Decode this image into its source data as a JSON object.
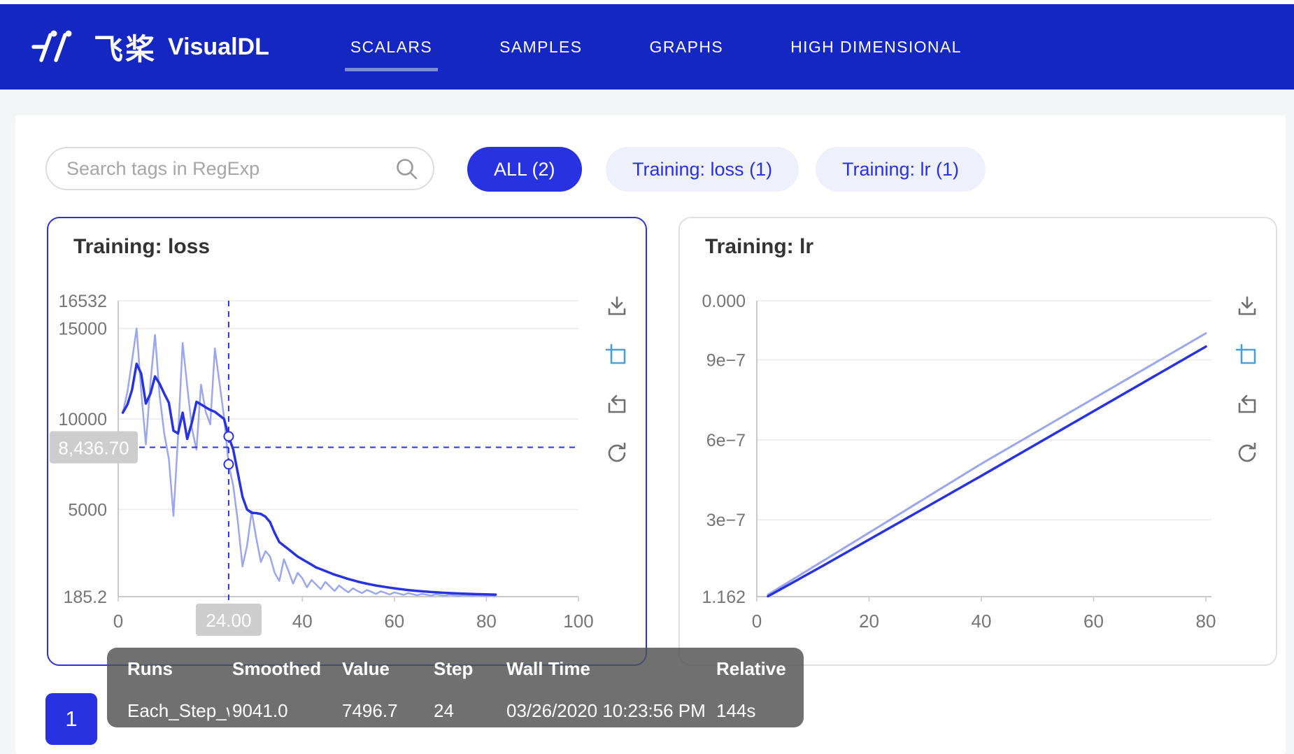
{
  "navbar": {
    "brand_cn": "飞桨",
    "brand_name": "VisualDL",
    "tabs": [
      {
        "label": "SCALARS",
        "active": true
      },
      {
        "label": "SAMPLES",
        "active": false
      },
      {
        "label": "GRAPHS",
        "active": false
      },
      {
        "label": "HIGH DIMENSIONAL",
        "active": false
      }
    ]
  },
  "toolbar": {
    "search_placeholder": "Search tags in RegExp",
    "filters": [
      {
        "label": "ALL (2)",
        "active": true
      },
      {
        "label": "Training: loss (1)",
        "active": false
      },
      {
        "label": "Training: lr (1)",
        "active": false
      }
    ]
  },
  "pagination": {
    "current_page": "1"
  },
  "tooltip": {
    "headers": [
      "Runs",
      "Smoothed",
      "Value",
      "Step",
      "Wall Time",
      "Relative"
    ],
    "rows": [
      [
        "Each_Step_w",
        "9041.0",
        "7496.7",
        "24",
        "03/26/2020 10:23:56 PM",
        "144s"
      ]
    ]
  },
  "colors": {
    "navbar_bg": "#1527c2",
    "accent_blue": "#2932e1",
    "line_value": "#9ba6f0",
    "line_smoothed": "#2932e1",
    "inactive_pill_bg": "#eef0fb",
    "tool_active_icon": "#49a0d8",
    "axis_label": "#757575",
    "pointer_box_bg": "#cdcdcd"
  },
  "chart_data": [
    {
      "type": "line",
      "title": "Training: loss",
      "xlabel": "",
      "ylabel": "",
      "xlim": [
        0,
        100
      ],
      "ylim": [
        185.2,
        16532
      ],
      "grid": true,
      "legend_position": "none",
      "x_ticks": [
        {
          "v": 0,
          "label": "0"
        },
        {
          "v": 40,
          "label": "40"
        },
        {
          "v": 60,
          "label": "60"
        },
        {
          "v": 80,
          "label": "80"
        },
        {
          "v": 100,
          "label": "100"
        }
      ],
      "y_ticks": [
        {
          "v": 16532,
          "label": "16532"
        },
        {
          "v": 15000,
          "label": "15000"
        },
        {
          "v": 10000,
          "label": "10000"
        },
        {
          "v": 5000,
          "label": "5000"
        },
        {
          "v": 185.2,
          "label": "185.2"
        }
      ],
      "x_start": 1,
      "series": [
        {
          "name": "Value",
          "color": "#9ba6f0",
          "width": 2.5,
          "values": [
            10350,
            11500,
            13200,
            15000,
            11500,
            8600,
            12000,
            14650,
            11300,
            9200,
            7800,
            4650,
            9000,
            14200,
            11800,
            9500,
            8300,
            11900,
            10400,
            9700,
            13900,
            12000,
            10100,
            7496.7,
            6300,
            4300,
            1850,
            3000,
            4900,
            3400,
            2100,
            2700,
            2400,
            1500,
            1050,
            2250,
            1600,
            900,
            1500,
            1200,
            700,
            1100,
            850,
            600,
            1000,
            750,
            500,
            800,
            600,
            420,
            650,
            500,
            380,
            550,
            450,
            330,
            480,
            400,
            300,
            420,
            350,
            280,
            380,
            320,
            260,
            340,
            290,
            240,
            310,
            270,
            230,
            290,
            255,
            225,
            270,
            245,
            220,
            255,
            235,
            215,
            240,
            225
          ]
        },
        {
          "name": "Smoothed",
          "color": "#2932e1",
          "width": 3.5,
          "values": [
            10350,
            10800,
            11600,
            13050,
            12500,
            10850,
            11400,
            12350,
            11950,
            11400,
            10900,
            9350,
            9200,
            10350,
            8900,
            9800,
            10950,
            10800,
            10650,
            10500,
            10400,
            10200,
            10000,
            9041,
            8300,
            7000,
            5700,
            5000,
            4820,
            4800,
            4750,
            4600,
            4300,
            3700,
            3200,
            3000,
            2800,
            2600,
            2400,
            2250,
            2100,
            1950,
            1800,
            1700,
            1600,
            1500,
            1400,
            1320,
            1240,
            1160,
            1090,
            1020,
            960,
            900,
            850,
            800,
            760,
            720,
            680,
            645,
            610,
            580,
            550,
            525,
            500,
            478,
            458,
            440,
            423,
            408,
            394,
            381,
            369,
            358,
            348,
            339,
            330,
            322,
            315,
            308,
            302,
            296
          ]
        }
      ],
      "pointer": {
        "step": 24,
        "cursor_value": 8436.7,
        "x_box_label": "24.00",
        "y_box_label": "8,436.70",
        "marked_values": [
          9041.0,
          7496.7
        ]
      }
    },
    {
      "type": "line",
      "title": "Training: lr",
      "xlabel": "",
      "ylabel": "",
      "xlim": [
        0,
        81
      ],
      "ylim": [
        1.162e-08,
        1.122e-06
      ],
      "grid": true,
      "legend_position": "none",
      "x_ticks": [
        {
          "v": 0,
          "label": "0"
        },
        {
          "v": 20,
          "label": "20"
        },
        {
          "v": 40,
          "label": "40"
        },
        {
          "v": 60,
          "label": "60"
        },
        {
          "v": 80,
          "label": "80"
        }
      ],
      "y_ticks": [
        {
          "v": 1.122e-06,
          "label": "0.000"
        },
        {
          "v": 9e-07,
          "label": "9e−7"
        },
        {
          "v": 6e-07,
          "label": "6e−7"
        },
        {
          "v": 3e-07,
          "label": "3e−7"
        },
        {
          "v": 1.162e-08,
          "label": "1.162"
        }
      ],
      "series": [
        {
          "name": "Value",
          "color": "#9ba6f0",
          "width": 3,
          "points": [
            [
              2,
              1.9e-08
            ],
            [
              40,
              5.1e-07
            ],
            [
              80,
              1e-06
            ]
          ]
        },
        {
          "name": "Smoothed",
          "color": "#2932e1",
          "width": 3.5,
          "points": [
            [
              2,
              1.3e-08
            ],
            [
              12,
              1.3e-07
            ],
            [
              40,
              4.65e-07
            ],
            [
              80,
              9.5e-07
            ]
          ]
        }
      ]
    }
  ]
}
